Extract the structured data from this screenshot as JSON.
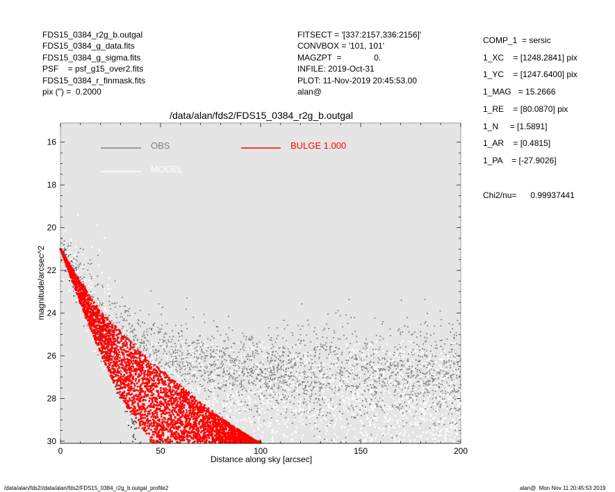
{
  "header_left": [
    "FDS15_0384_r2g_b.outgal",
    "FDS15_0384_g_data.fits",
    "FDS15_0384_g_sigma.fits",
    "PSF    = psf_g15_over2.fits",
    "FDS15_0384_r_finmask.fits",
    "pix (\") =  0.2000"
  ],
  "header_mid": [
    "FITSECT = '[337:2157,336:2156]'",
    "CONVBOX = '101, 101'",
    "MAGZPT  =              0.",
    "INFILE: 2019-Oct-31",
    "PLOT: 11-Nov-2019 20:45:53.00",
    "alan@"
  ],
  "params": [
    "COMP_1  = sersic",
    "1_XC    = [1248.2841] pix",
    "1_YC    = [1247.6400] pix",
    "1_MAG   = 15.2666",
    "1_RE    = [80.0870] pix",
    "1_N     = [1.5891]",
    "1_AR    = [0.4815]",
    "1_PA    = [-27.9026]"
  ],
  "chi2": "Chi2/nu=      0.99937441",
  "footer_left": "/data/alan/fds2//data/alan/fds2/FDS15_0384_r2g_b.outgal_profile2",
  "footer_right": "alan@  Mon Nov 11 20:45:53 2019",
  "colors": {
    "obs": "#7f7f7f",
    "model": "#ffffff",
    "bulge": "#ff0000",
    "panel": "#e5e5e5"
  },
  "chart_data": {
    "type": "scatter",
    "title": "/data/alan/fds2/FDS15_0384_r2g_b.outgal",
    "xlabel": "Distance along sky [arcsec]",
    "ylabel": "magnitude/arcsec^2",
    "xlim": [
      0,
      200
    ],
    "ylim": [
      30.1,
      15.1
    ],
    "x_ticks": [
      "0",
      "50",
      "100",
      "150",
      "200"
    ],
    "y_ticks": [
      "16",
      "18",
      "20",
      "22",
      "24",
      "26",
      "28",
      "30"
    ],
    "legend": [
      {
        "label": "OBS",
        "color": "#7f7f7f"
      },
      {
        "label": "MODEL",
        "color": "#ffffff"
      },
      {
        "label": "BULGE  1.000",
        "color": "#ff0000"
      }
    ],
    "series": [
      {
        "name": "OBS",
        "description_points": [
          [
            0,
            20.8
          ],
          [
            10,
            22.5
          ],
          [
            20,
            24.2
          ],
          [
            40,
            25.6
          ],
          [
            60,
            26.3
          ],
          [
            100,
            26.8
          ],
          [
            150,
            27.0
          ],
          [
            200,
            27.1
          ]
        ],
        "noise_band_from_x": 35
      },
      {
        "name": "BULGE  1.000",
        "inner_edge": [
          [
            0,
            21.0
          ],
          [
            10,
            23.6
          ],
          [
            20,
            25.9
          ],
          [
            30,
            28.0
          ],
          [
            45,
            30.0
          ]
        ],
        "outer_edge": [
          [
            0,
            21.0
          ],
          [
            10,
            22.5
          ],
          [
            20,
            23.9
          ],
          [
            40,
            25.8
          ],
          [
            60,
            27.4
          ],
          [
            80,
            28.9
          ],
          [
            98,
            30.0
          ]
        ]
      }
    ]
  }
}
